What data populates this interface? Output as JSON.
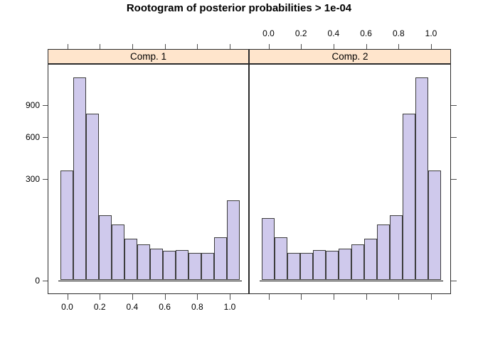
{
  "title": "Rootogram of posterior probabilities > 1e-04",
  "colors": {
    "background": "#ffffff",
    "bar_fill": "#cfc9ec",
    "bar_border": "#3d3d3d",
    "strip_fill": "#ffe5cc",
    "panel_border": "#2b2b2b",
    "tick": "#4d4d4d",
    "text": "#000000"
  },
  "chart_data": {
    "type": "bar",
    "subtype": "rootogram (histogram with square-root count scale)",
    "title": "Rootogram of posterior probabilities > 1e-04",
    "y_scale": "sqrt",
    "ylim": [
      0,
      1380
    ],
    "grid": false,
    "legend": null,
    "x_tick_labels": [
      "0.0",
      "0.2",
      "0.4",
      "0.6",
      "0.8",
      "1.0"
    ],
    "x_tick_values": [
      0.0,
      0.2,
      0.4,
      0.6,
      0.8,
      1.0
    ],
    "y_tick_labels": [
      "900",
      "600",
      "300",
      "0"
    ],
    "y_tick_values": [
      900,
      600,
      300,
      0
    ],
    "bins": {
      "count": 14,
      "approx_start": -0.04,
      "approx_width": 0.079
    },
    "panels": [
      {
        "label": "Comp. 1",
        "x_labels_position": "bottom",
        "counts": [
          352,
          1200,
          812,
          124,
          91,
          51,
          38,
          29,
          25,
          27,
          22,
          22,
          54,
          186
        ]
      },
      {
        "label": "Comp. 2",
        "x_labels_position": "top",
        "counts": [
          112,
          54,
          22,
          22,
          27,
          25,
          29,
          38,
          51,
          91,
          124,
          812,
          1200,
          352
        ]
      }
    ]
  }
}
